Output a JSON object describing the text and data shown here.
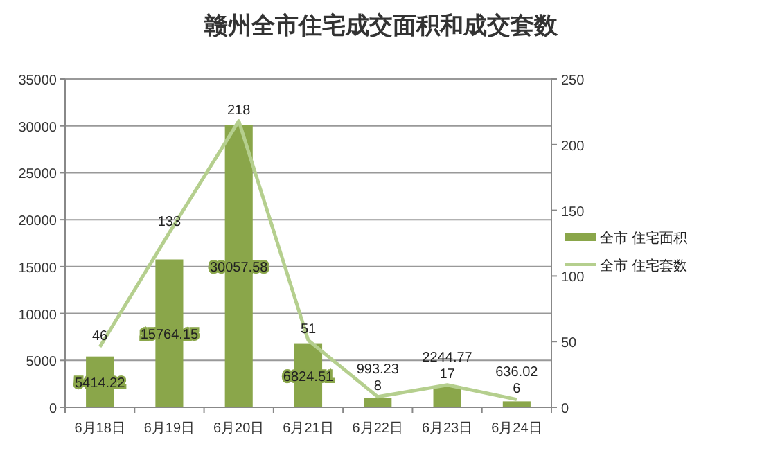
{
  "chart_data": {
    "type": "bar",
    "title": "赣州全市住宅成交面积和成交套数",
    "categories": [
      "6月18日",
      "6月19日",
      "6月20日",
      "6月21日",
      "6月22日",
      "6月23日",
      "6月24日"
    ],
    "series": [
      {
        "name": "全市 住宅面积",
        "color": "#8aa64a",
        "values": [
          5414.22,
          15764.15,
          30057.58,
          6824.51,
          993.23,
          2244.77,
          636.02
        ]
      },
      {
        "name": "全市 住宅套数",
        "type": "line",
        "axis": "y2",
        "color": "#b5cf8e",
        "values": [
          46,
          133,
          218,
          51,
          8,
          17,
          6
        ]
      }
    ],
    "ylim": [
      0,
      35000
    ],
    "yticks": [
      0,
      5000,
      10000,
      15000,
      20000,
      25000,
      30000,
      35000
    ],
    "y2lim": [
      0,
      250
    ],
    "y2ticks": [
      0,
      50,
      100,
      150,
      200,
      250
    ],
    "grid": "y",
    "legend": "right",
    "data_labels": true
  }
}
